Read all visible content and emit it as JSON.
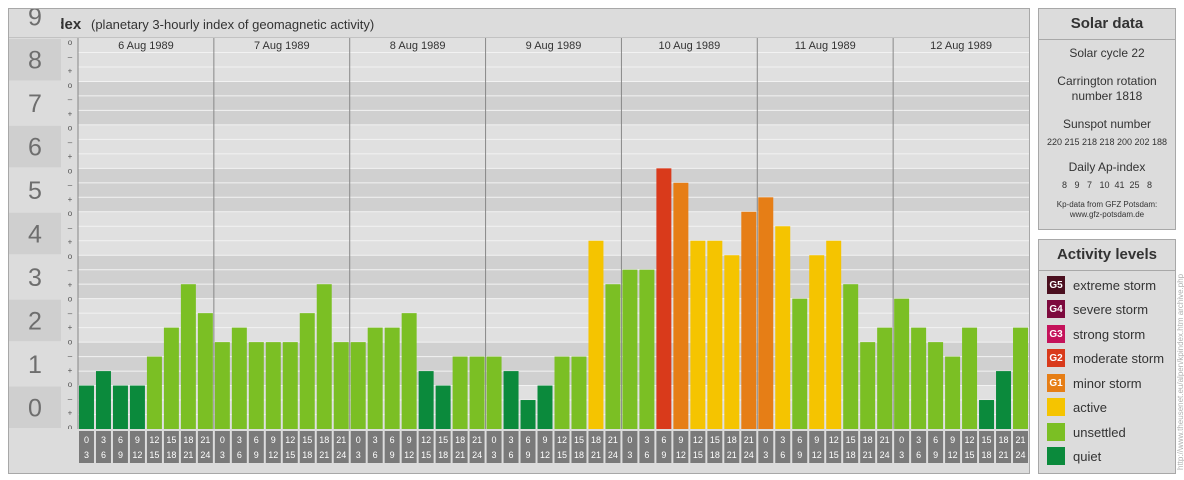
{
  "title": "Kp-index",
  "subtitle": "(planetary 3-hourly index of geomagnetic activity)",
  "colors": {
    "quiet": "#0b8a3c",
    "unsettled": "#7bbf24",
    "active": "#f5c400",
    "minor_storm": "#e67e16",
    "moderate_storm": "#d93a1b",
    "strong_storm": "#c4125a",
    "severe_storm": "#7d0a3e",
    "extreme_storm": "#4a0f1f"
  },
  "chart_data": {
    "type": "bar",
    "ylim": [
      0,
      9
    ],
    "y_ticks": [
      "0",
      "1",
      "2",
      "3",
      "4",
      "5",
      "6",
      "7",
      "8",
      "9"
    ],
    "minor_ticks": [
      "o",
      "+",
      "–",
      "o",
      "+",
      "–",
      "o",
      "+",
      "–",
      "o",
      "+",
      "–",
      "o",
      "+",
      "–",
      "o",
      "+",
      "–",
      "o",
      "+",
      "–",
      "o",
      "+",
      "–",
      "o",
      "+",
      "–",
      "o"
    ],
    "days": [
      "6 Aug 1989",
      "7 Aug 1989",
      "8 Aug 1989",
      "9 Aug 1989",
      "10 Aug 1989",
      "11 Aug 1989",
      "12 Aug 1989"
    ],
    "hour_start": [
      "0",
      "3",
      "6",
      "9",
      "12",
      "15",
      "18",
      "21"
    ],
    "hour_end": [
      "3",
      "6",
      "9",
      "12",
      "15",
      "18",
      "21",
      "24"
    ],
    "values": [
      1.0,
      1.333,
      1.0,
      1.0,
      1.667,
      2.333,
      3.333,
      2.667,
      2.0,
      2.333,
      2.0,
      2.0,
      2.0,
      2.667,
      3.333,
      2.0,
      2.0,
      2.333,
      2.333,
      2.667,
      1.333,
      1.0,
      1.667,
      1.667,
      1.667,
      1.333,
      0.667,
      1.0,
      1.667,
      1.667,
      4.333,
      3.333,
      3.667,
      3.667,
      6.0,
      5.667,
      4.333,
      4.333,
      4.0,
      5.0,
      5.333,
      4.667,
      3.0,
      4.0,
      4.333,
      3.333,
      2.0,
      2.333,
      3.0,
      2.333,
      2.0,
      1.667,
      2.333,
      0.667,
      1.333,
      2.333
    ]
  },
  "solar": {
    "title": "Solar data",
    "cycle": "Solar cycle 22",
    "carrington_1": "Carrington rotation",
    "carrington_2": "number 1818",
    "sunspot_label": "Sunspot number",
    "sunspot_values": "220 215 218 218 200 202 188",
    "ap_label": "Daily Ap-index",
    "ap_values": "8   9   7   10  41  25   8",
    "source_1": "Kp-data from  GFZ Potsdam:",
    "source_2": "www.gfz-potsdam.de"
  },
  "levels": {
    "title": "Activity levels",
    "items": [
      {
        "code": "G5",
        "label": "extreme storm",
        "color": "#4a0f1f"
      },
      {
        "code": "G4",
        "label": "severe storm",
        "color": "#7d0a3e"
      },
      {
        "code": "G3",
        "label": "strong storm",
        "color": "#c4125a"
      },
      {
        "code": "G2",
        "label": "moderate storm",
        "color": "#d93a1b"
      },
      {
        "code": "G1",
        "label": "minor storm",
        "color": "#e67e16"
      },
      {
        "code": "",
        "label": "active",
        "color": "#f5c400"
      },
      {
        "code": "",
        "label": "unsettled",
        "color": "#7bbf24"
      },
      {
        "code": "",
        "label": "quiet",
        "color": "#0b8a3c"
      }
    ]
  },
  "watermark": "http://www.theusenet.eu/alpen/kpindex.htm  archive.php"
}
